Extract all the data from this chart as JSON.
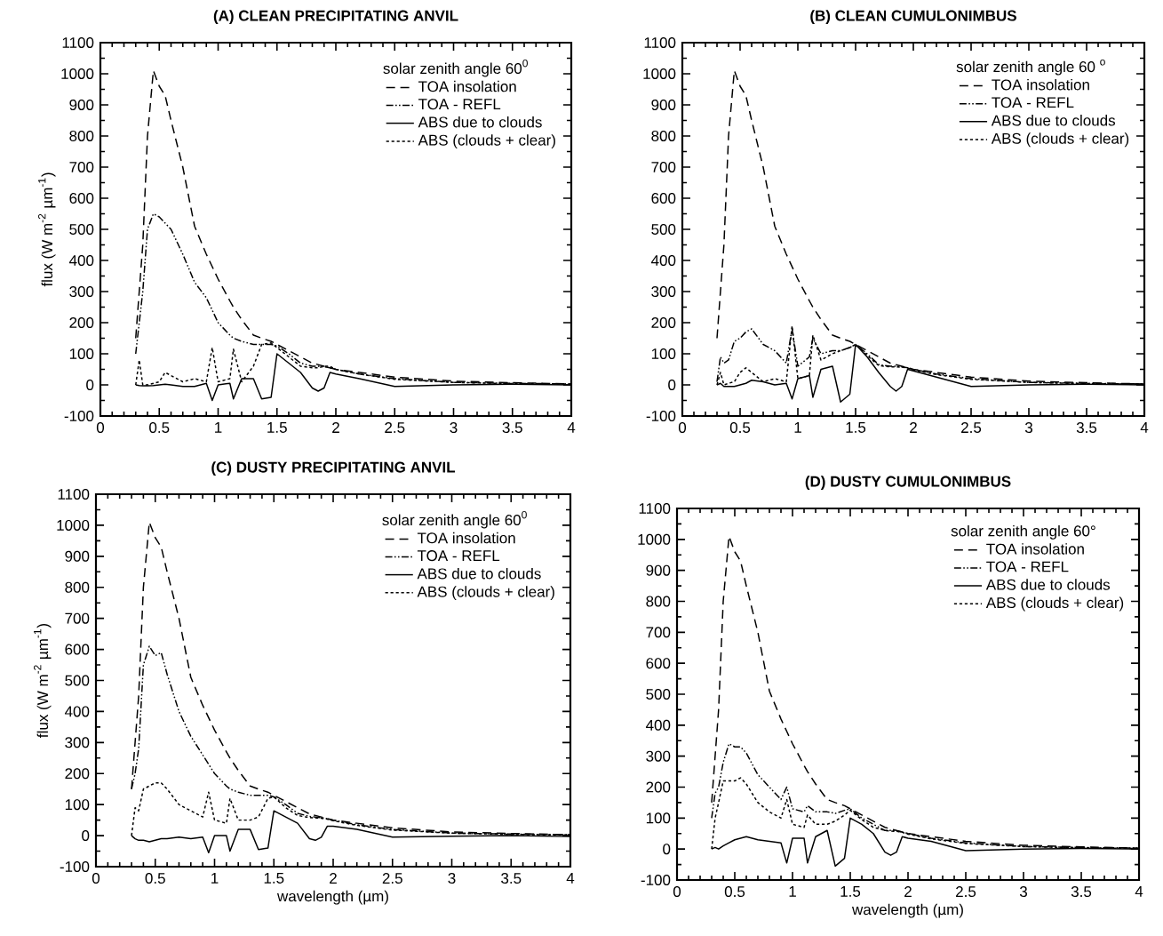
{
  "chart_data": [
    {
      "type": "line",
      "title": "(A) CLEAN PRECIPITATING ANVIL",
      "ylabel": "flux (W m$^{-2}$ µm$^{-1}$)",
      "legend_title": "solar zenith angle 60$^{0}$",
      "legend": "top right",
      "xlim": [
        0,
        4
      ],
      "ylim": [
        -100,
        1100
      ],
      "xticks": [
        0,
        0.5,
        1,
        1.5,
        2,
        2.5,
        3,
        3.5,
        4
      ],
      "yticks": [
        -100,
        0,
        100,
        200,
        300,
        400,
        500,
        600,
        700,
        800,
        900,
        1000,
        1100
      ],
      "x": [
        0.3,
        0.33,
        0.36,
        0.4,
        0.45,
        0.5,
        0.55,
        0.6,
        0.7,
        0.8,
        0.9,
        0.95,
        1.0,
        1.1,
        1.13,
        1.2,
        1.3,
        1.37,
        1.45,
        1.5,
        1.6,
        1.7,
        1.8,
        1.85,
        1.9,
        1.95,
        2.0,
        2.2,
        2.5,
        3.0,
        3.5,
        4.0
      ],
      "series": [
        {
          "name": "TOA insolation",
          "color": "#000000",
          "line_style": "dashed",
          "values": [
            150,
            300,
            450,
            800,
            1010,
            960,
            930,
            850,
            700,
            510,
            420,
            380,
            340,
            270,
            250,
            210,
            160,
            150,
            140,
            130,
            110,
            90,
            70,
            65,
            60,
            55,
            50,
            40,
            25,
            12,
            7,
            3
          ]
        },
        {
          "name": "TOA - REFL",
          "color": "#000000",
          "line_style": "dashdotdotted",
          "values": [
            100,
            200,
            300,
            500,
            550,
            540,
            520,
            500,
            420,
            330,
            280,
            240,
            200,
            160,
            150,
            140,
            130,
            130,
            130,
            125,
            100,
            70,
            60,
            60,
            58,
            55,
            50,
            35,
            20,
            8,
            5,
            3
          ]
        },
        {
          "name": "ABS due to clouds",
          "color": "#000000",
          "line_style": "solid",
          "values": [
            0,
            -2,
            -3,
            -3,
            -2,
            0,
            2,
            0,
            -5,
            -5,
            5,
            -50,
            0,
            5,
            -45,
            20,
            20,
            -45,
            -40,
            100,
            70,
            40,
            -10,
            -20,
            -10,
            40,
            35,
            20,
            -5,
            0,
            2,
            0
          ]
        },
        {
          "name": "ABS (clouds + clear)",
          "color": "#000000",
          "line_style": "dotted",
          "values": [
            0,
            80,
            0,
            0,
            5,
            10,
            40,
            30,
            10,
            20,
            10,
            120,
            10,
            20,
            115,
            10,
            60,
            130,
            135,
            120,
            90,
            60,
            55,
            55,
            60,
            60,
            50,
            35,
            18,
            8,
            4,
            2
          ]
        }
      ]
    },
    {
      "type": "line",
      "title": "(B) CLEAN CUMULONIMBUS",
      "legend_title": "solar zenith angle 60 $^{o}$",
      "legend": "top right",
      "xlim": [
        0,
        4
      ],
      "ylim": [
        -100,
        1100
      ],
      "xticks": [
        0,
        0.5,
        1,
        1.5,
        2,
        2.5,
        3,
        3.5,
        4
      ],
      "yticks": [
        -100,
        0,
        100,
        200,
        300,
        400,
        500,
        600,
        700,
        800,
        900,
        1000,
        1100
      ],
      "x": [
        0.3,
        0.33,
        0.36,
        0.4,
        0.45,
        0.5,
        0.55,
        0.6,
        0.7,
        0.8,
        0.9,
        0.95,
        1.0,
        1.1,
        1.13,
        1.2,
        1.3,
        1.37,
        1.45,
        1.5,
        1.6,
        1.7,
        1.8,
        1.85,
        1.9,
        1.95,
        2.0,
        2.2,
        2.5,
        3.0,
        3.5,
        4.0
      ],
      "series": [
        {
          "name": "TOA insolation",
          "color": "#000000",
          "line_style": "dashed",
          "values": [
            150,
            300,
            450,
            800,
            1010,
            960,
            930,
            850,
            700,
            510,
            420,
            380,
            340,
            270,
            250,
            210,
            160,
            150,
            140,
            130,
            110,
            90,
            70,
            65,
            60,
            55,
            50,
            40,
            25,
            12,
            7,
            3
          ]
        },
        {
          "name": "TOA - REFL",
          "color": "#000000",
          "line_style": "dashdotdotted",
          "values": [
            10,
            90,
            70,
            80,
            140,
            150,
            170,
            180,
            130,
            110,
            70,
            180,
            60,
            90,
            150,
            100,
            110,
            110,
            120,
            130,
            100,
            65,
            60,
            60,
            58,
            55,
            50,
            35,
            20,
            8,
            5,
            3
          ]
        },
        {
          "name": "ABS due to clouds",
          "color": "#000000",
          "line_style": "solid",
          "values": [
            0,
            5,
            -5,
            -5,
            -5,
            0,
            5,
            15,
            10,
            0,
            5,
            -45,
            20,
            30,
            -40,
            50,
            60,
            -55,
            -30,
            130,
            90,
            40,
            -5,
            -20,
            -5,
            50,
            45,
            25,
            -5,
            0,
            2,
            0
          ]
        },
        {
          "name": "ABS (clouds + clear)",
          "color": "#000000",
          "line_style": "dotted",
          "values": [
            0,
            40,
            0,
            5,
            10,
            40,
            55,
            40,
            10,
            20,
            10,
            190,
            20,
            30,
            160,
            80,
            100,
            110,
            120,
            130,
            95,
            62,
            58,
            58,
            57,
            54,
            48,
            33,
            18,
            8,
            4,
            2
          ]
        }
      ]
    },
    {
      "type": "line",
      "title": "(C) DUSTY PRECIPITATING ANVIL",
      "xlabel": "wavelength (µm)",
      "ylabel": "flux (W m$^{-2}$ µm$^{-1}$)",
      "legend_title": "solar zenith angle 60$^{0}$",
      "legend": "top right",
      "xlim": [
        0,
        4
      ],
      "ylim": [
        -100,
        1100
      ],
      "xticks": [
        0,
        0.5,
        1,
        1.5,
        2,
        2.5,
        3,
        3.5,
        4
      ],
      "yticks": [
        -100,
        0,
        100,
        200,
        300,
        400,
        500,
        600,
        700,
        800,
        900,
        1000,
        1100
      ],
      "x": [
        0.3,
        0.33,
        0.36,
        0.4,
        0.45,
        0.5,
        0.55,
        0.6,
        0.7,
        0.8,
        0.9,
        0.95,
        1.0,
        1.1,
        1.13,
        1.2,
        1.3,
        1.37,
        1.45,
        1.5,
        1.6,
        1.7,
        1.8,
        1.85,
        1.9,
        1.95,
        2.0,
        2.2,
        2.5,
        3.0,
        3.5,
        4.0
      ],
      "series": [
        {
          "name": "TOA insolation",
          "color": "#000000",
          "line_style": "dashed",
          "values": [
            150,
            300,
            450,
            800,
            1010,
            960,
            930,
            850,
            700,
            510,
            420,
            380,
            340,
            270,
            250,
            210,
            160,
            150,
            140,
            130,
            110,
            90,
            70,
            65,
            60,
            55,
            50,
            40,
            25,
            12,
            7,
            3
          ]
        },
        {
          "name": "TOA - REFL",
          "color": "#000000",
          "line_style": "dashdotdotted",
          "values": [
            150,
            200,
            280,
            550,
            610,
            580,
            590,
            520,
            400,
            320,
            260,
            230,
            200,
            160,
            150,
            140,
            130,
            130,
            130,
            125,
            100,
            72,
            62,
            60,
            58,
            55,
            50,
            35,
            20,
            8,
            5,
            3
          ]
        },
        {
          "name": "ABS due to clouds",
          "color": "#000000",
          "line_style": "solid",
          "values": [
            0,
            -10,
            -15,
            -15,
            -20,
            -15,
            -10,
            -10,
            -5,
            -10,
            -5,
            -55,
            0,
            0,
            -50,
            20,
            20,
            -45,
            -40,
            80,
            60,
            40,
            -10,
            -15,
            -5,
            30,
            30,
            20,
            -5,
            -2,
            0,
            -3
          ]
        },
        {
          "name": "ABS (clouds + clear)",
          "color": "#000000",
          "line_style": "dotted",
          "values": [
            0,
            90,
            80,
            150,
            160,
            170,
            170,
            150,
            100,
            80,
            60,
            140,
            50,
            40,
            120,
            50,
            50,
            60,
            120,
            125,
            90,
            65,
            58,
            57,
            56,
            53,
            48,
            33,
            18,
            8,
            4,
            2
          ]
        }
      ]
    },
    {
      "type": "line",
      "title": "(D) DUSTY CUMULONIMBUS",
      "xlabel": "wavelength (µm)",
      "legend_title": "solar zenith angle 60°",
      "legend": "top right",
      "xlim": [
        0,
        4
      ],
      "ylim": [
        -100,
        1100
      ],
      "xticks": [
        0,
        0.5,
        1,
        1.5,
        2,
        2.5,
        3,
        3.5,
        4
      ],
      "yticks": [
        -100,
        0,
        100,
        200,
        300,
        400,
        500,
        600,
        700,
        800,
        900,
        1000,
        1100
      ],
      "x": [
        0.3,
        0.33,
        0.36,
        0.4,
        0.45,
        0.5,
        0.55,
        0.6,
        0.7,
        0.8,
        0.9,
        0.95,
        1.0,
        1.1,
        1.13,
        1.2,
        1.3,
        1.37,
        1.45,
        1.5,
        1.6,
        1.7,
        1.8,
        1.85,
        1.9,
        1.95,
        2.0,
        2.2,
        2.5,
        3.0,
        3.5,
        4.0
      ],
      "series": [
        {
          "name": "TOA insolation",
          "color": "#000000",
          "line_style": "dashed",
          "values": [
            150,
            300,
            450,
            800,
            1010,
            960,
            930,
            850,
            700,
            510,
            420,
            380,
            340,
            270,
            250,
            210,
            160,
            150,
            140,
            130,
            110,
            90,
            70,
            65,
            60,
            55,
            50,
            40,
            25,
            12,
            7,
            3
          ]
        },
        {
          "name": "TOA - REFL",
          "color": "#000000",
          "line_style": "dashdotdotted",
          "values": [
            100,
            180,
            200,
            280,
            340,
            330,
            330,
            310,
            240,
            200,
            160,
            200,
            130,
            120,
            140,
            120,
            120,
            115,
            125,
            130,
            100,
            80,
            60,
            60,
            58,
            55,
            50,
            35,
            20,
            8,
            5,
            3
          ]
        },
        {
          "name": "ABS due to clouds",
          "color": "#000000",
          "line_style": "solid",
          "values": [
            0,
            5,
            0,
            10,
            20,
            30,
            35,
            40,
            30,
            25,
            20,
            -45,
            35,
            35,
            -45,
            40,
            60,
            -55,
            -30,
            100,
            80,
            50,
            -10,
            -20,
            -10,
            40,
            35,
            25,
            -5,
            0,
            2,
            0
          ]
        },
        {
          "name": "ABS (clouds + clear)",
          "color": "#000000",
          "line_style": "dotted",
          "values": [
            0,
            100,
            150,
            220,
            220,
            220,
            230,
            210,
            150,
            120,
            100,
            160,
            80,
            70,
            110,
            80,
            80,
            90,
            110,
            125,
            95,
            70,
            60,
            58,
            57,
            54,
            48,
            33,
            18,
            8,
            4,
            2
          ]
        }
      ]
    }
  ]
}
